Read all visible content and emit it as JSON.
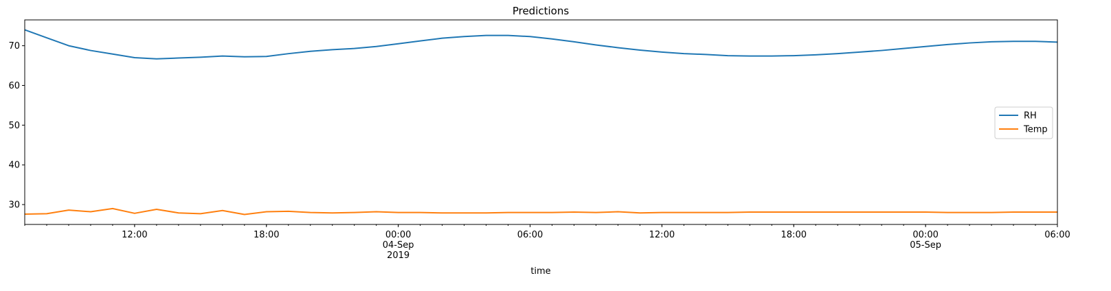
{
  "chart_data": {
    "type": "line",
    "title": "Predictions",
    "xlabel": "time",
    "ylabel": "",
    "ylim": [
      25,
      76.5
    ],
    "xlim": [
      "2019-09-03T07:00",
      "2019-09-05T06:00"
    ],
    "grid": false,
    "legend_position": "center-right",
    "y_ticks": [
      30,
      40,
      50,
      60,
      70
    ],
    "x_ticks": [
      {
        "t": "2019-09-03T12:00",
        "label": [
          "12:00"
        ]
      },
      {
        "t": "2019-09-03T18:00",
        "label": [
          "18:00"
        ]
      },
      {
        "t": "2019-09-04T00:00",
        "label": [
          "00:00",
          "04-Sep",
          "2019"
        ]
      },
      {
        "t": "2019-09-04T06:00",
        "label": [
          "06:00"
        ]
      },
      {
        "t": "2019-09-04T12:00",
        "label": [
          "12:00"
        ]
      },
      {
        "t": "2019-09-04T18:00",
        "label": [
          "18:00"
        ]
      },
      {
        "t": "2019-09-05T00:00",
        "label": [
          "00:00",
          "05-Sep"
        ]
      },
      {
        "t": "2019-09-05T06:00",
        "label": [
          "06:00"
        ]
      }
    ],
    "x": [
      "2019-09-03T07:00",
      "2019-09-03T08:00",
      "2019-09-03T09:00",
      "2019-09-03T10:00",
      "2019-09-03T11:00",
      "2019-09-03T12:00",
      "2019-09-03T13:00",
      "2019-09-03T14:00",
      "2019-09-03T15:00",
      "2019-09-03T16:00",
      "2019-09-03T17:00",
      "2019-09-03T18:00",
      "2019-09-03T19:00",
      "2019-09-03T20:00",
      "2019-09-03T21:00",
      "2019-09-03T22:00",
      "2019-09-03T23:00",
      "2019-09-04T00:00",
      "2019-09-04T01:00",
      "2019-09-04T02:00",
      "2019-09-04T03:00",
      "2019-09-04T04:00",
      "2019-09-04T05:00",
      "2019-09-04T06:00",
      "2019-09-04T07:00",
      "2019-09-04T08:00",
      "2019-09-04T09:00",
      "2019-09-04T10:00",
      "2019-09-04T11:00",
      "2019-09-04T12:00",
      "2019-09-04T13:00",
      "2019-09-04T14:00",
      "2019-09-04T15:00",
      "2019-09-04T16:00",
      "2019-09-04T17:00",
      "2019-09-04T18:00",
      "2019-09-04T19:00",
      "2019-09-04T20:00",
      "2019-09-04T21:00",
      "2019-09-04T22:00",
      "2019-09-04T23:00",
      "2019-09-05T00:00",
      "2019-09-05T01:00",
      "2019-09-05T02:00",
      "2019-09-05T03:00",
      "2019-09-05T04:00",
      "2019-09-05T05:00",
      "2019-09-05T06:00"
    ],
    "series": [
      {
        "name": "RH",
        "color": "#1f77b4",
        "values": [
          74.0,
          72.0,
          70.0,
          68.8,
          67.9,
          67.0,
          66.7,
          66.9,
          67.1,
          67.4,
          67.2,
          67.3,
          68.0,
          68.6,
          69.0,
          69.3,
          69.8,
          70.5,
          71.2,
          71.9,
          72.3,
          72.6,
          72.6,
          72.3,
          71.7,
          71.0,
          70.2,
          69.5,
          68.9,
          68.4,
          68.0,
          67.8,
          67.5,
          67.4,
          67.4,
          67.5,
          67.7,
          68.0,
          68.4,
          68.8,
          69.3,
          69.8,
          70.3,
          70.7,
          71.0,
          71.1,
          71.1,
          70.9
        ]
      },
      {
        "name": "Temp",
        "color": "#ff7f0e",
        "values": [
          27.6,
          27.7,
          28.6,
          28.2,
          29.0,
          27.8,
          28.8,
          27.9,
          27.7,
          28.5,
          27.5,
          28.2,
          28.3,
          28.0,
          27.9,
          28.0,
          28.2,
          28.0,
          28.0,
          27.9,
          27.9,
          27.9,
          28.0,
          28.0,
          28.0,
          28.1,
          28.0,
          28.2,
          27.9,
          28.0,
          28.0,
          28.0,
          28.0,
          28.1,
          28.1,
          28.1,
          28.1,
          28.1,
          28.1,
          28.1,
          28.1,
          28.1,
          28.0,
          28.0,
          28.0,
          28.1,
          28.1,
          28.1
        ]
      }
    ]
  }
}
